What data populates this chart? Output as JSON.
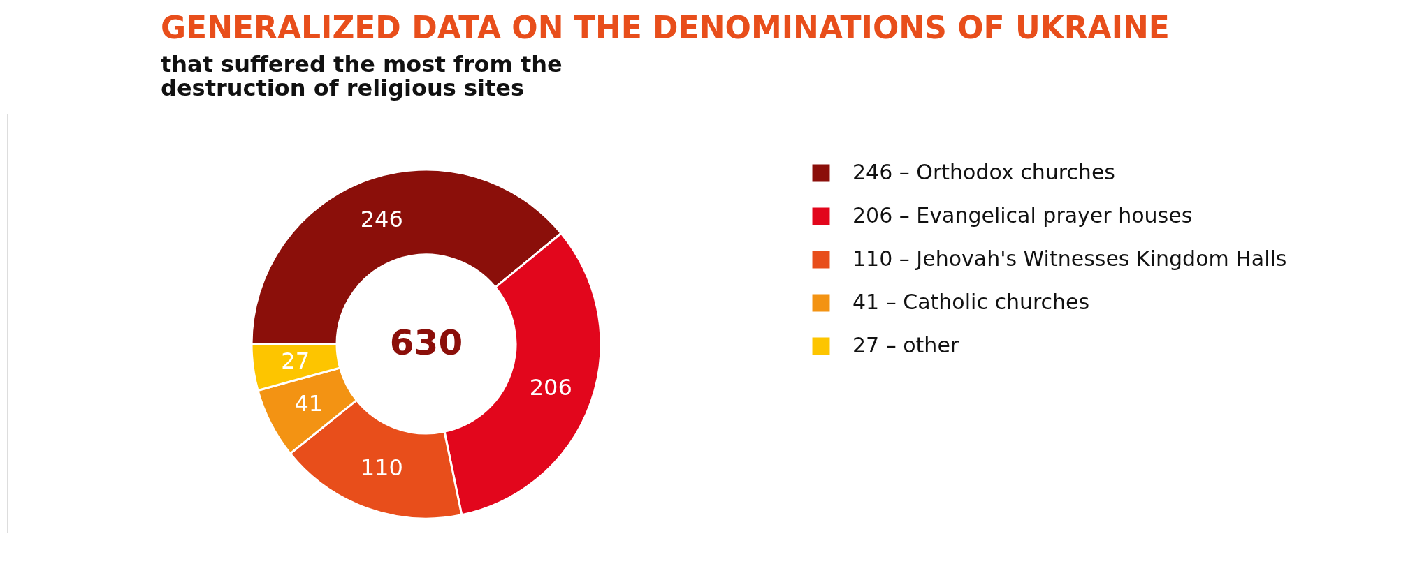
{
  "chart_data": {
    "type": "donut",
    "title": "GENERALIZED DATA ON THE DENOMINATIONS OF UKRAINE",
    "subtitle": "that suffered the most from the destruction of religious sites",
    "categories": [
      "246 – Orthodox churches",
      "206 – Evangelical prayer houses",
      "110 – Jehovah's Witnesses Kingdom Halls",
      "41 – Catholic churches",
      "27 – other"
    ],
    "values": [
      246,
      206,
      110,
      41,
      27
    ],
    "colors": [
      "#8b0f0a",
      "#e2061c",
      "#e84e1b",
      "#f39313",
      "#fdc500"
    ],
    "data_labels": true,
    "legend": "right",
    "annotations": [
      "630"
    ]
  }
}
